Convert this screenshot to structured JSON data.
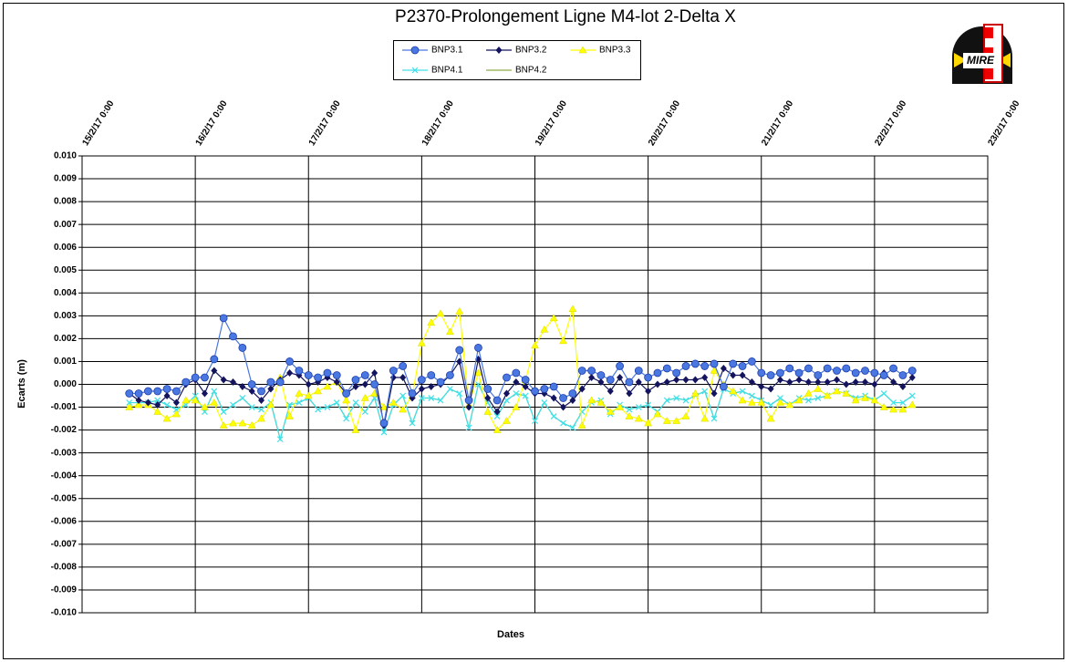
{
  "chart_data": {
    "type": "line",
    "title": "P2370-Prolongement  Ligne  M4-lot 2-Delta  X",
    "x_label": "Dates",
    "y_label": "Ecarts (m)",
    "grid": true,
    "legend": "top",
    "xlim": [
      "2017-02-15T00:00",
      "2017-02-23T00:00"
    ],
    "xticks": [
      {
        "value": "2017-02-15T00:00",
        "label": "15/2/17 0:00"
      },
      {
        "value": "2017-02-16T00:00",
        "label": "16/2/17 0:00"
      },
      {
        "value": "2017-02-17T00:00",
        "label": "17/2/17 0:00"
      },
      {
        "value": "2017-02-18T00:00",
        "label": "18/2/17 0:00"
      },
      {
        "value": "2017-02-19T00:00",
        "label": "19/2/17 0:00"
      },
      {
        "value": "2017-02-20T00:00",
        "label": "20/2/17 0:00"
      },
      {
        "value": "2017-02-21T00:00",
        "label": "21/2/17 0:00"
      },
      {
        "value": "2017-02-22T00:00",
        "label": "22/2/17 0:00"
      },
      {
        "value": "2017-02-23T00:00",
        "label": "23/2/17 0:00"
      }
    ],
    "ylim": [
      -0.01,
      0.01
    ],
    "yticks": [
      {
        "value": 0.01,
        "label": "0.010"
      },
      {
        "value": 0.009,
        "label": "0.009"
      },
      {
        "value": 0.008,
        "label": "0.008"
      },
      {
        "value": 0.007,
        "label": "0.007"
      },
      {
        "value": 0.006,
        "label": "0.006"
      },
      {
        "value": 0.005,
        "label": "0.005"
      },
      {
        "value": 0.004,
        "label": "0.004"
      },
      {
        "value": 0.003,
        "label": "0.003"
      },
      {
        "value": 0.002,
        "label": "0.002"
      },
      {
        "value": 0.001,
        "label": "0.001"
      },
      {
        "value": 0,
        "label": "0.000"
      },
      {
        "value": -0.001,
        "label": "-0.001"
      },
      {
        "value": -0.002,
        "label": "-0.002"
      },
      {
        "value": -0.003,
        "label": "-0.003"
      },
      {
        "value": -0.004,
        "label": "-0.004"
      },
      {
        "value": -0.005,
        "label": "-0.005"
      },
      {
        "value": -0.006,
        "label": "-0.006"
      },
      {
        "value": -0.007,
        "label": "-0.007"
      },
      {
        "value": -0.008,
        "label": "-0.008"
      },
      {
        "value": -0.009,
        "label": "-0.009"
      },
      {
        "value": -0.01,
        "label": "-0.010"
      }
    ],
    "x": [
      "2017-02-15T10:00",
      "2017-02-15T12:00",
      "2017-02-15T14:00",
      "2017-02-15T16:00",
      "2017-02-15T18:00",
      "2017-02-15T20:00",
      "2017-02-15T22:00",
      "2017-02-16T00:00",
      "2017-02-16T02:00",
      "2017-02-16T04:00",
      "2017-02-16T06:00",
      "2017-02-16T08:00",
      "2017-02-16T10:00",
      "2017-02-16T12:00",
      "2017-02-16T14:00",
      "2017-02-16T16:00",
      "2017-02-16T18:00",
      "2017-02-16T20:00",
      "2017-02-16T22:00",
      "2017-02-17T00:00",
      "2017-02-17T02:00",
      "2017-02-17T04:00",
      "2017-02-17T06:00",
      "2017-02-17T08:00",
      "2017-02-17T10:00",
      "2017-02-17T12:00",
      "2017-02-17T14:00",
      "2017-02-17T16:00",
      "2017-02-17T18:00",
      "2017-02-17T20:00",
      "2017-02-17T22:00",
      "2017-02-18T00:00",
      "2017-02-18T02:00",
      "2017-02-18T04:00",
      "2017-02-18T06:00",
      "2017-02-18T08:00",
      "2017-02-18T10:00",
      "2017-02-18T12:00",
      "2017-02-18T14:00",
      "2017-02-18T16:00",
      "2017-02-18T18:00",
      "2017-02-18T20:00",
      "2017-02-18T22:00",
      "2017-02-19T00:00",
      "2017-02-19T02:00",
      "2017-02-19T04:00",
      "2017-02-19T06:00",
      "2017-02-19T08:00",
      "2017-02-19T10:00",
      "2017-02-19T12:00",
      "2017-02-19T14:00",
      "2017-02-19T16:00",
      "2017-02-19T18:00",
      "2017-02-19T20:00",
      "2017-02-19T22:00",
      "2017-02-20T00:00",
      "2017-02-20T02:00",
      "2017-02-20T04:00",
      "2017-02-20T06:00",
      "2017-02-20T08:00",
      "2017-02-20T10:00",
      "2017-02-20T12:00",
      "2017-02-20T14:00",
      "2017-02-20T16:00",
      "2017-02-20T18:00",
      "2017-02-20T20:00",
      "2017-02-20T22:00",
      "2017-02-21T00:00",
      "2017-02-21T02:00",
      "2017-02-21T04:00",
      "2017-02-21T06:00",
      "2017-02-21T08:00",
      "2017-02-21T10:00",
      "2017-02-21T12:00",
      "2017-02-21T14:00",
      "2017-02-21T16:00",
      "2017-02-21T18:00",
      "2017-02-21T20:00",
      "2017-02-21T22:00",
      "2017-02-22T00:00",
      "2017-02-22T02:00",
      "2017-02-22T04:00",
      "2017-02-22T06:00",
      "2017-02-22T08:00"
    ],
    "series": [
      {
        "name": "BNP4.2",
        "color": "#8fae4a",
        "marker": "none",
        "values": [
          -0.0008,
          -0.0008,
          -0.0008,
          -0.0007,
          -0.0009,
          -0.0011,
          -0.0009,
          -0.0005,
          -0.0012,
          -0.0003,
          -0.0012,
          -0.0009,
          -0.0006,
          -0.001,
          -0.0011,
          -0.0008,
          -0.0024,
          -0.0009,
          -0.0008,
          -0.0006,
          -0.0011,
          -0.001,
          -0.0008,
          -0.0015,
          -0.0008,
          -0.0012,
          -0.0006,
          -0.0021,
          -0.0009,
          -0.0005,
          -0.0017,
          -0.0006,
          -0.0006,
          -0.0007,
          -0.0002,
          -0.0004,
          -0.0019,
          0.0,
          -0.0008,
          -0.0014,
          -0.0007,
          -0.0004,
          -0.0005,
          -0.0016,
          -0.0008,
          -0.0014,
          -0.0017,
          -0.0019,
          -0.0012,
          -0.0008,
          -0.0007,
          -0.0013,
          -0.0009,
          -0.0011,
          -0.001,
          -0.0009,
          -0.0012,
          -0.0007,
          -0.0006,
          -0.0007,
          -0.0005,
          -0.0003,
          -0.0015,
          -0.0002,
          -0.0004,
          -0.0003,
          -0.0005,
          -0.0007,
          -0.0009,
          -0.0006,
          -0.0009,
          -0.0006,
          -0.0007,
          -0.0006,
          -0.0005,
          -0.0003,
          -0.0004,
          -0.0006,
          -0.0005,
          -0.0007,
          -0.0004,
          -0.0008,
          -0.0008,
          -0.0005
        ]
      },
      {
        "name": "BNP4.1",
        "color": "#40e0e8",
        "marker": "cross",
        "values": [
          -0.0008,
          -0.0008,
          -0.0008,
          -0.0007,
          -0.0009,
          -0.0011,
          -0.0009,
          -0.0005,
          -0.0012,
          -0.0003,
          -0.0012,
          -0.0009,
          -0.0006,
          -0.001,
          -0.0011,
          -0.0008,
          -0.0024,
          -0.0009,
          -0.0008,
          -0.0006,
          -0.0011,
          -0.001,
          -0.0008,
          -0.0015,
          -0.0008,
          -0.0012,
          -0.0006,
          -0.0021,
          -0.0009,
          -0.0005,
          -0.0017,
          -0.0006,
          -0.0006,
          -0.0007,
          -0.0002,
          -0.0004,
          -0.0019,
          0.0,
          -0.0008,
          -0.0014,
          -0.0007,
          -0.0004,
          -0.0005,
          -0.0016,
          -0.0008,
          -0.0014,
          -0.0017,
          -0.0019,
          -0.0012,
          -0.0008,
          -0.0007,
          -0.0013,
          -0.0009,
          -0.0011,
          -0.001,
          -0.0009,
          -0.0012,
          -0.0007,
          -0.0006,
          -0.0007,
          -0.0005,
          -0.0003,
          -0.0015,
          -0.0002,
          -0.0004,
          -0.0003,
          -0.0005,
          -0.0007,
          -0.0009,
          -0.0006,
          -0.0009,
          -0.0006,
          -0.0007,
          -0.0006,
          -0.0005,
          -0.0003,
          -0.0004,
          -0.0006,
          -0.0005,
          -0.0007,
          -0.0004,
          -0.0008,
          -0.0008,
          -0.0005
        ]
      },
      {
        "name": "BNP3.3",
        "color": "#ffff00",
        "marker": "triangle",
        "values": [
          -0.001,
          -0.0009,
          -0.0009,
          -0.0012,
          -0.0015,
          -0.0013,
          -0.0007,
          -0.0007,
          -0.001,
          -0.0008,
          -0.0018,
          -0.0017,
          -0.0017,
          -0.0018,
          -0.0015,
          -0.0009,
          0.0003,
          -0.0014,
          -0.0004,
          -0.0005,
          -0.0003,
          -0.0001,
          0.0001,
          -0.0007,
          -0.002,
          -0.0006,
          -0.0004,
          -0.001,
          -0.0008,
          -0.0011,
          -0.0005,
          0.0018,
          0.0027,
          0.0031,
          0.0023,
          0.0032,
          -0.0009,
          0.0005,
          -0.0012,
          -0.002,
          -0.0016,
          -0.001,
          0.0002,
          0.0017,
          0.0024,
          0.0029,
          0.0019,
          0.0033,
          -0.0018,
          -0.0007,
          -0.0008,
          -0.0012,
          -0.001,
          -0.0014,
          -0.0015,
          -0.0017,
          -0.0013,
          -0.0016,
          -0.0016,
          -0.0014,
          -0.0004,
          -0.0015,
          0.0006,
          0.0,
          -0.0003,
          -0.0007,
          -0.0008,
          -0.0008,
          -0.0015,
          -0.0008,
          -0.0009,
          -0.0007,
          -0.0004,
          -0.0002,
          -0.0005,
          -0.0003,
          -0.0004,
          -0.0007,
          -0.0006,
          -0.0007,
          -0.001,
          -0.0011,
          -0.0011,
          -0.0009
        ]
      },
      {
        "name": "BNP3.2",
        "color": "#14145e",
        "marker": "diamond",
        "values": [
          -0.0004,
          -0.0007,
          -0.0008,
          -0.0009,
          -0.0005,
          -0.0008,
          0.0,
          0.0002,
          -0.0004,
          0.0006,
          0.0002,
          0.0001,
          -0.0001,
          -0.0003,
          -0.0007,
          -0.0002,
          0.0002,
          0.0005,
          0.0004,
          0.0,
          0.0001,
          0.0003,
          0.0001,
          -0.0004,
          -0.0001,
          0.0,
          0.0005,
          -0.0018,
          0.0003,
          0.0003,
          -0.0006,
          -0.0002,
          -0.0001,
          0.0,
          0.0004,
          0.001,
          -0.001,
          0.0011,
          -0.0006,
          -0.0012,
          -0.0004,
          0.0001,
          -0.0001,
          -0.0004,
          -0.0004,
          -0.0006,
          -0.001,
          -0.0007,
          -0.0002,
          0.0003,
          0.0001,
          -0.0003,
          0.0003,
          -0.0004,
          0.0001,
          -0.0003,
          0.0,
          0.0001,
          0.0002,
          0.0002,
          0.0002,
          0.0003,
          -0.0004,
          0.0007,
          0.0004,
          0.0004,
          0.0001,
          -0.0001,
          -0.0002,
          0.0002,
          0.0001,
          0.0002,
          0.0001,
          0.0001,
          0.0001,
          0.0002,
          0.0,
          0.0001,
          0.0001,
          0.0,
          0.0005,
          0.0001,
          -0.0001,
          0.0003
        ]
      },
      {
        "name": "BNP3.1",
        "color": "#4a78e0",
        "marker": "circle",
        "values": [
          -0.0004,
          -0.0004,
          -0.0003,
          -0.0003,
          -0.0002,
          -0.0003,
          0.0001,
          0.0003,
          0.0003,
          0.0011,
          0.0029,
          0.0021,
          0.0016,
          0.0,
          -0.0003,
          0.0001,
          0.0001,
          0.001,
          0.0006,
          0.0004,
          0.0003,
          0.0005,
          0.0004,
          -0.0004,
          0.0002,
          0.0004,
          0.0,
          -0.0017,
          0.0006,
          0.0008,
          -0.0004,
          0.0002,
          0.0004,
          0.0001,
          0.0004,
          0.0015,
          -0.0007,
          0.0016,
          -0.0002,
          -0.0007,
          0.0003,
          0.0005,
          0.0002,
          -0.0003,
          -0.0002,
          -0.0001,
          -0.0006,
          -0.0004,
          0.0006,
          0.0006,
          0.0004,
          0.0002,
          0.0008,
          0.0001,
          0.0006,
          0.0003,
          0.0005,
          0.0007,
          0.0005,
          0.0008,
          0.0009,
          0.0008,
          0.0009,
          -0.0001,
          0.0009,
          0.0008,
          0.001,
          0.0005,
          0.0004,
          0.0005,
          0.0007,
          0.0005,
          0.0007,
          0.0004,
          0.0007,
          0.0006,
          0.0007,
          0.0005,
          0.0006,
          0.0005,
          0.0004,
          0.0007,
          0.0004,
          0.0006
        ]
      }
    ],
    "legend_order": [
      4,
      3,
      2,
      1,
      0
    ]
  },
  "logo_text": "MIRE"
}
